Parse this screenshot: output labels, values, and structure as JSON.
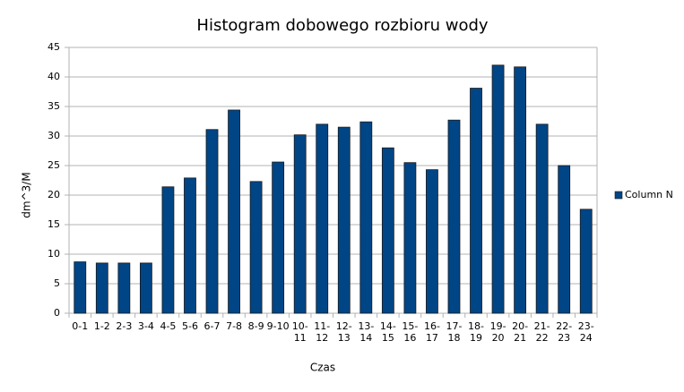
{
  "chart_data": {
    "type": "bar",
    "title": "Histogram dobowego rozbioru wody",
    "x_label": "Czas",
    "y_label": "dm^3/M",
    "categories": [
      "0-1",
      "1-2",
      "2-3",
      "3-4",
      "4-5",
      "5-6",
      "6-7",
      "7-8",
      "8-9",
      "9-10",
      "10-11",
      "11-12",
      "12-13",
      "13-14",
      "14-15",
      "15-16",
      "16-17",
      "17-18",
      "18-19",
      "19-20",
      "20-21",
      "21-22",
      "22-23",
      "23-24"
    ],
    "series": [
      {
        "name": "Column N",
        "color": "#004586",
        "values": [
          8.7,
          8.5,
          8.5,
          8.5,
          21.4,
          22.9,
          31.1,
          34.4,
          22.3,
          25.6,
          30.2,
          32.0,
          31.5,
          32.4,
          28.0,
          25.5,
          24.3,
          32.7,
          38.1,
          42.0,
          41.7,
          32.0,
          25.0,
          17.6
        ]
      }
    ],
    "ylim": [
      0,
      45
    ],
    "yticks": [
      0,
      5,
      10,
      15,
      20,
      25,
      30,
      35,
      40,
      45
    ],
    "grid": true,
    "legend": "right"
  }
}
